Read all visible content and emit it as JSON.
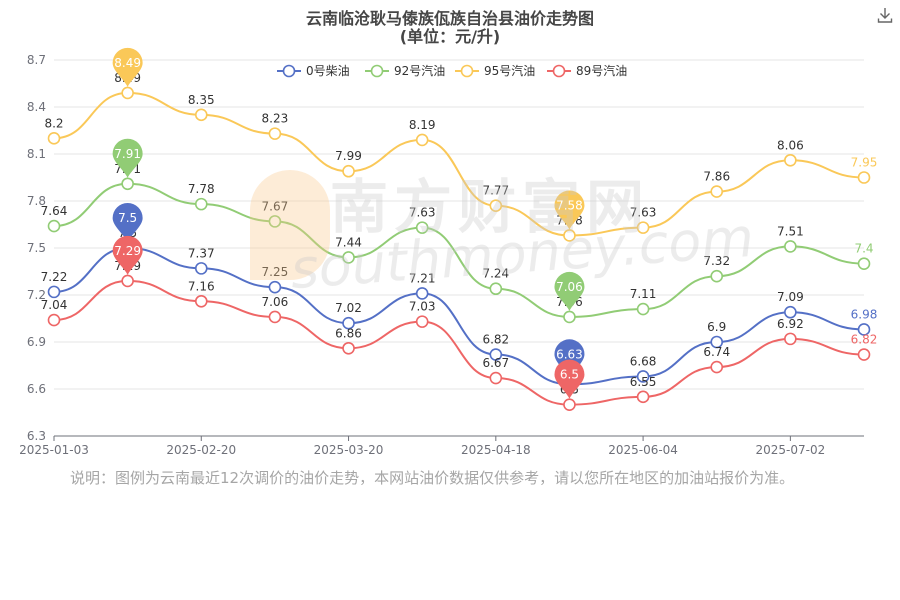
{
  "title": "云南临沧耿马傣族佤族自治县油价走势图",
  "subtitle": "(单位：元/升)",
  "note": "说明：图例为云南最近12次调价的油价走势，本网站油价数据仅供参考，请以您所在地区的加油站报价为准。",
  "watermark": {
    "cn": "南方财富网",
    "en": "southmoney.com"
  },
  "chart_data": {
    "type": "line",
    "title": "云南临沧耿马傣族佤族自治县油价走势图",
    "subtitle": "(单位：元/升)",
    "xlabel": "",
    "ylabel": "",
    "x_tick_labels": [
      "2025-01-03",
      "2025-02-20",
      "2025-03-20",
      "2025-04-18",
      "2025-06-04",
      "2025-07-02"
    ],
    "x_tick_indices": [
      0,
      2,
      4,
      6,
      8,
      10
    ],
    "ylim": [
      6.3,
      8.7
    ],
    "y_ticks": [
      "6.3",
      "6.6",
      "6.9",
      "7.2",
      "7.5",
      "7.8",
      "8.1",
      "8.4",
      "8.7"
    ],
    "grid": "horizontal",
    "legend_position": "top-center",
    "series": [
      {
        "name": "0号柴油",
        "color": "#5470c6",
        "values": [
          7.22,
          7.5,
          7.37,
          7.25,
          7.02,
          7.21,
          6.82,
          6.63,
          6.68,
          6.9,
          7.09,
          6.98
        ],
        "max_index": 1,
        "min_index": 7
      },
      {
        "name": "92号汽油",
        "color": "#91cc75",
        "values": [
          7.64,
          7.91,
          7.78,
          7.67,
          7.44,
          7.63,
          7.24,
          7.06,
          7.11,
          7.32,
          7.51,
          7.4
        ],
        "max_index": 1,
        "min_index": 7
      },
      {
        "name": "95号汽油",
        "color": "#fac858",
        "values": [
          8.2,
          8.49,
          8.35,
          8.23,
          7.99,
          8.19,
          7.77,
          7.58,
          7.63,
          7.86,
          8.06,
          7.95
        ],
        "max_index": 1,
        "min_index": 7
      },
      {
        "name": "89号汽油",
        "color": "#ee6666",
        "values": [
          7.04,
          7.29,
          7.16,
          7.06,
          6.86,
          7.03,
          6.67,
          6.5,
          6.55,
          6.74,
          6.92,
          6.82
        ],
        "max_index": 1,
        "min_index": 7
      }
    ]
  }
}
